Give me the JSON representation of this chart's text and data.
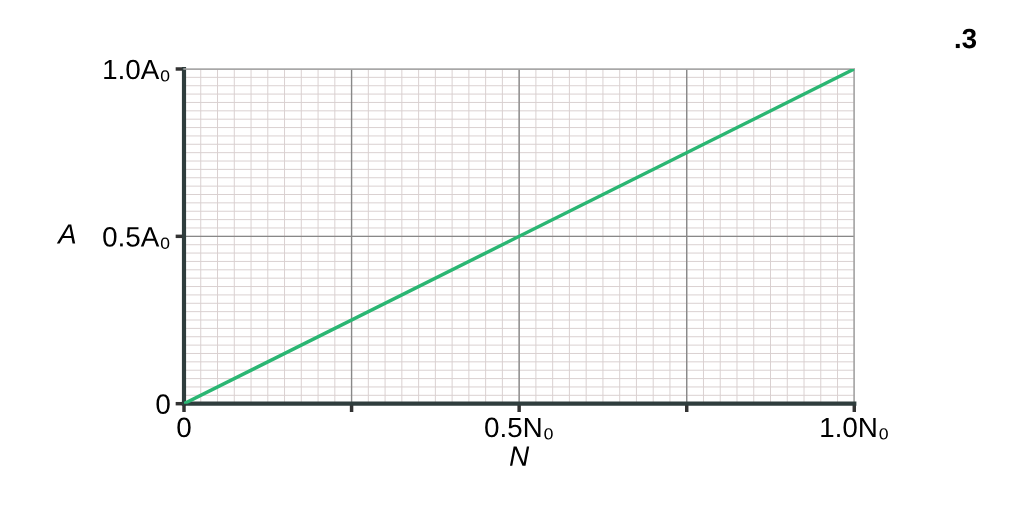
{
  "chart_data": {
    "type": "line",
    "x": [
      0,
      1
    ],
    "series": [
      {
        "color": "#2bb673",
        "values": [
          0,
          1
        ]
      }
    ],
    "xlabel": "N",
    "ylabel": "A",
    "xlim": [
      0,
      1
    ],
    "ylim": [
      0,
      1
    ],
    "xticks": [
      {
        "value": 0,
        "label": "0"
      },
      {
        "value": 0.25,
        "label": null
      },
      {
        "value": 0.5,
        "label": "0.5N₀"
      },
      {
        "value": 0.75,
        "label": null
      },
      {
        "value": 1,
        "label": "1.0N₀"
      }
    ],
    "yticks": [
      {
        "value": 0,
        "label": "0"
      },
      {
        "value": 0.5,
        "label": "0.5A₀"
      },
      {
        "value": 1,
        "label": "1.0A₀"
      }
    ],
    "grid": true,
    "annotations": [
      ".3"
    ]
  }
}
